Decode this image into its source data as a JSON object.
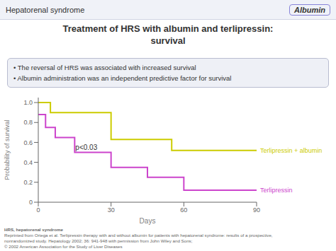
{
  "chart_data": {
    "type": "line",
    "line_style": "step",
    "header": "Hepatorenal syndrome",
    "badge": "Albumin",
    "title": "Treatment of HRS with albumin and terlipressin:\nsurvival",
    "bullets": [
      "• The reversal of HRS was associated with increased survival",
      "• Albumin administration was an independent predictive factor for survival"
    ],
    "xlabel": "Days",
    "ylabel": "Probability of survival",
    "xlim": [
      0,
      90
    ],
    "xticks": [
      0,
      30,
      60,
      90
    ],
    "ylim": [
      0,
      1.05
    ],
    "yticks": [
      0,
      0.2,
      0.4,
      0.6,
      0.8,
      {
        "value": 1.0,
        "label": "1.0"
      }
    ],
    "grid": false,
    "annotations": [
      "p<0.03"
    ],
    "series": [
      {
        "name": "Terlipressin + albumin",
        "color": "#cccc00",
        "x": [
          0,
          5,
          10,
          30,
          55,
          90
        ],
        "values": [
          1.0,
          0.9,
          0.9,
          0.63,
          0.52,
          0.52
        ]
      },
      {
        "name": "Terlipressin",
        "color": "#cc44cc",
        "x": [
          0,
          3,
          7,
          15,
          30,
          45,
          60,
          90
        ],
        "values": [
          0.88,
          0.75,
          0.65,
          0.5,
          0.35,
          0.25,
          0.12,
          0.12
        ]
      }
    ],
    "footer": [
      "HRS, hepatorenal syndrome",
      "Reprinted from Ortega et al. Terlipressin therapy with and without albumin for patients with hepatorenal syndrome: results of a prospective,",
      "nonrandomized study. Hepatology 2002; 36: 941-948  with permission from John Wiley and Sons;",
      "© 2002 American Association for the Study of Liver Diseases"
    ]
  }
}
